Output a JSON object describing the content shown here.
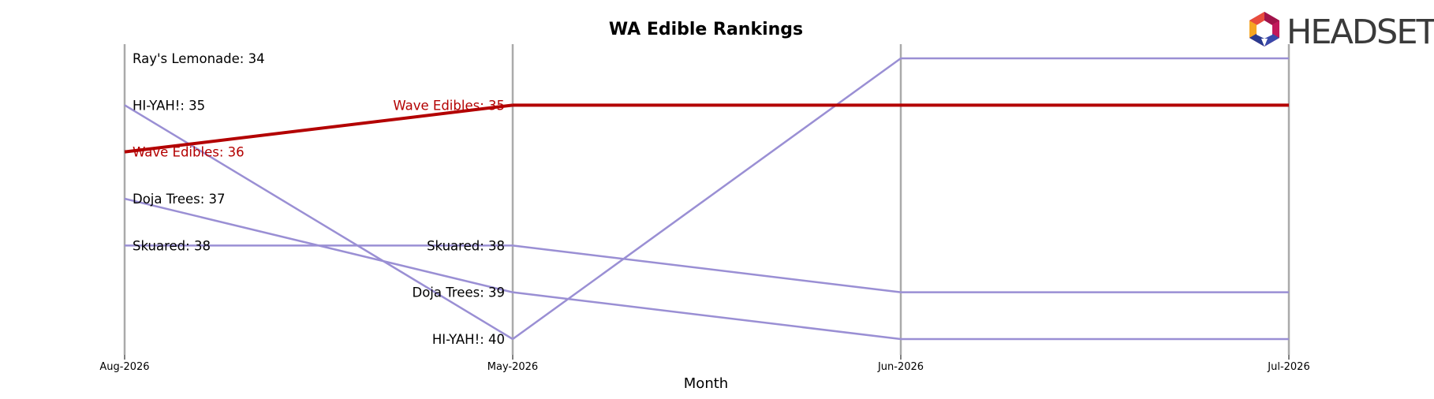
{
  "chart_data": {
    "type": "line",
    "title": "WA Edible Rankings",
    "xlabel": "Month",
    "ylabel": "",
    "x": [
      "Aug-2026",
      "May-2026",
      "Jun-2026",
      "Jul-2026"
    ],
    "ylim": [
      40,
      34
    ],
    "y_inverted": true,
    "grid": false,
    "highlight_color": "#b30000",
    "default_color": "#9a8fd4",
    "series": [
      {
        "name": "Ray's Lemonade",
        "values": [
          34,
          null,
          null,
          null
        ],
        "highlight": false
      },
      {
        "name": "HI-YAH!",
        "values": [
          35,
          40,
          34,
          34
        ],
        "highlight": false
      },
      {
        "name": "Wave Edibles",
        "values": [
          36,
          35,
          35,
          35
        ],
        "highlight": true
      },
      {
        "name": "Doja Trees",
        "values": [
          37,
          39,
          40,
          40
        ],
        "highlight": false
      },
      {
        "name": "Skuared",
        "values": [
          38,
          38,
          39,
          39
        ],
        "highlight": false
      }
    ],
    "point_labels": [
      {
        "text": "Ray's Lemonade: 34",
        "x_index": 0,
        "y": 34,
        "highlight": false
      },
      {
        "text": "HI-YAH!: 35",
        "x_index": 0,
        "y": 35,
        "highlight": false
      },
      {
        "text": "Wave Edibles: 36",
        "x_index": 0,
        "y": 36,
        "highlight": true
      },
      {
        "text": "Doja Trees: 37",
        "x_index": 0,
        "y": 37,
        "highlight": false
      },
      {
        "text": "Skuared: 38",
        "x_index": 0,
        "y": 38,
        "highlight": false
      },
      {
        "text": "Wave Edibles: 35",
        "x_index": 1,
        "y": 35,
        "highlight": true
      },
      {
        "text": "Skuared: 38",
        "x_index": 1,
        "y": 38,
        "highlight": false
      },
      {
        "text": "Doja Trees: 39",
        "x_index": 1,
        "y": 39,
        "highlight": false
      },
      {
        "text": "HI-YAH!: 40",
        "x_index": 1,
        "y": 40,
        "highlight": false
      }
    ]
  },
  "logo": {
    "text": "HEADSET",
    "icon": "headset-hexagon-logo-icon"
  }
}
